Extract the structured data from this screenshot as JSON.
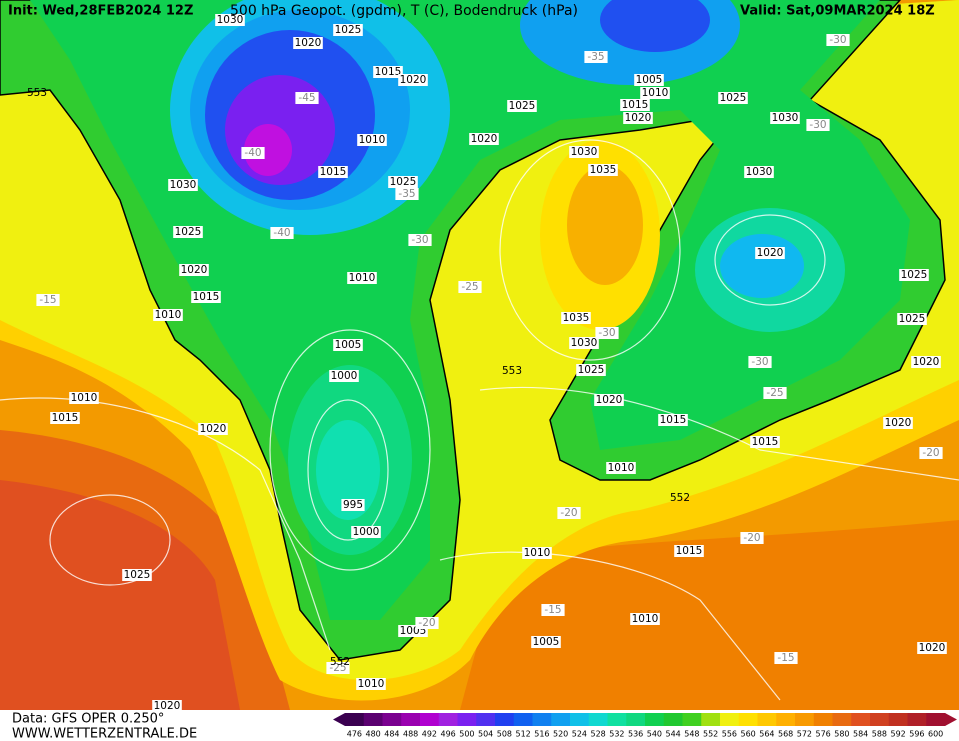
{
  "header": {
    "init": "Init: Wed,28FEB2024 12Z",
    "title": "500 hPa Geopot. (gpdm), T (C), Bodendruck (hPa)",
    "valid": "Valid: Sat,09MAR2024 18Z"
  },
  "footer": {
    "data": "Data: GFS OPER 0.250°",
    "site": "WWW.WETTERZENTRALE.DE"
  },
  "legend": {
    "ticks": [
      476,
      480,
      484,
      488,
      492,
      496,
      500,
      504,
      508,
      512,
      516,
      520,
      524,
      528,
      532,
      536,
      540,
      544,
      548,
      552,
      556,
      560,
      564,
      568,
      572,
      576,
      580,
      584,
      588,
      592,
      596,
      600
    ],
    "colors": [
      "#3a0050",
      "#5a0070",
      "#7a0090",
      "#9a00b0",
      "#b000d0",
      "#a020e0",
      "#7a20f0",
      "#5030f0",
      "#2040f0",
      "#1060f0",
      "#1080f0",
      "#10a0f0",
      "#10c0e8",
      "#10d8d0",
      "#10e0a0",
      "#10d880",
      "#10d050",
      "#20c830",
      "#40d020",
      "#a0e010",
      "#f0f010",
      "#ffe000",
      "#ffc800",
      "#ffb000",
      "#f89a00",
      "#f08000",
      "#e86a10",
      "#e05020",
      "#d04020",
      "#c03020",
      "#b02028",
      "#a01030"
    ]
  },
  "map": {
    "isobar_labels": [
      "1030",
      "1025",
      "1020",
      "1015",
      "1020",
      "1025",
      "1010",
      "1020",
      "1015",
      "1025",
      "1030",
      "1025",
      "1020",
      "1015",
      "1010",
      "1010",
      "1005",
      "1000",
      "995",
      "1000",
      "1010",
      "1015",
      "1020",
      "1025",
      "1020",
      "1005",
      "1010",
      "1030",
      "1035",
      "1035",
      "1030",
      "1025",
      "1020",
      "1015",
      "1010",
      "1015",
      "1010",
      "1010",
      "1005",
      "1015",
      "1020",
      "1025",
      "1025",
      "1020",
      "1020",
      "1030",
      "1030",
      "1025",
      "1005",
      "1010",
      "1015",
      "1020",
      "1020"
    ],
    "temperature_labels": [
      "-30",
      "-35",
      "-45",
      "-40",
      "-35",
      "-40",
      "-30",
      "-25",
      "-15",
      "-30",
      "-30",
      "-25",
      "-30",
      "-20",
      "-20",
      "-20",
      "-15",
      "-15",
      "-20",
      "-25"
    ],
    "geopotential_labels": [
      "553",
      "553",
      "552",
      "552"
    ]
  }
}
